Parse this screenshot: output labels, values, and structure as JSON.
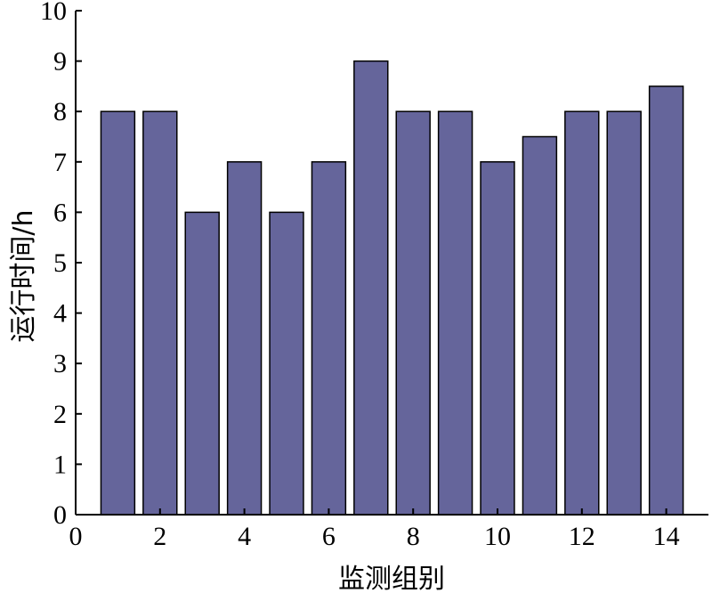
{
  "chart_data": {
    "type": "bar",
    "x": [
      1,
      2,
      3,
      4,
      5,
      6,
      7,
      8,
      9,
      10,
      11,
      12,
      13,
      14
    ],
    "values": [
      8,
      8,
      6,
      7,
      6,
      7,
      9,
      8,
      8,
      7,
      7.5,
      8,
      8,
      8.5
    ],
    "xlabel": "监测组别",
    "ylabel": "运行时间/h",
    "xlim": [
      0,
      15
    ],
    "ylim": [
      0,
      10
    ],
    "xticks": [
      "0",
      "2",
      "4",
      "6",
      "8",
      "10",
      "12",
      "14"
    ],
    "yticks": [
      "0",
      "1",
      "2",
      "3",
      "4",
      "5",
      "6",
      "7",
      "8",
      "9",
      "10"
    ],
    "grid": false,
    "bar_color": "#65659b",
    "edge_color": "#000000"
  }
}
